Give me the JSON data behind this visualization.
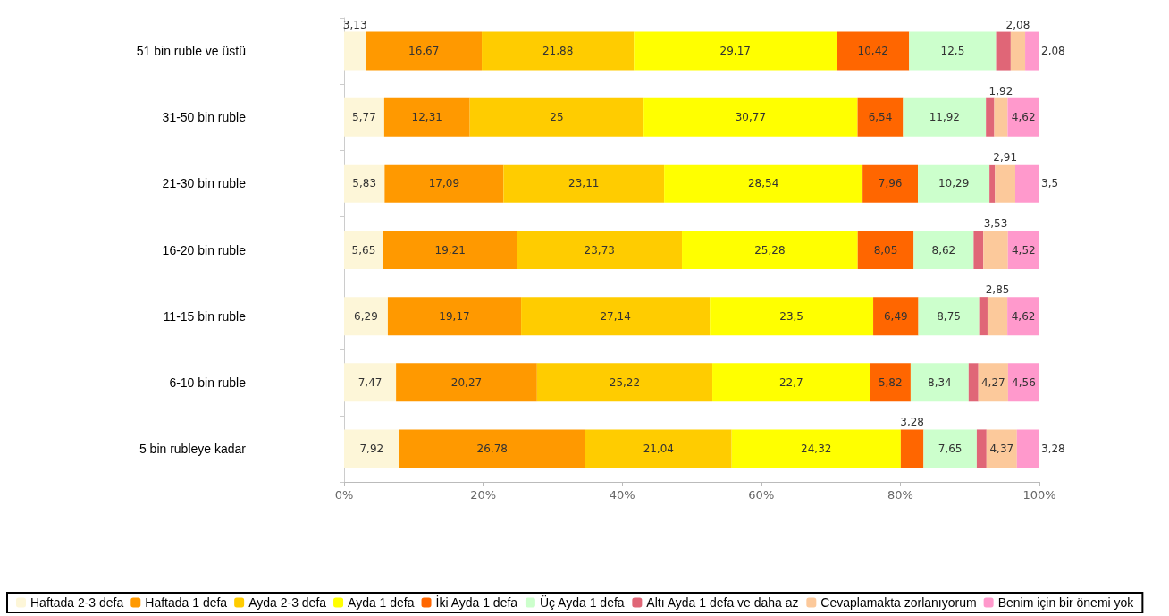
{
  "chart_data": {
    "type": "bar",
    "orientation": "horizontal",
    "stacked": true,
    "grid": false,
    "legend": "bottom",
    "categories": [
      "51 bin ruble ve üstü",
      "31-50 bin ruble",
      "21-30 bin ruble",
      "16-20 bin ruble",
      "11-15 bin ruble",
      "6-10 bin ruble",
      "5 bin rubleye kadar"
    ],
    "xlim": [
      0,
      100
    ],
    "xticks": [
      {
        "value": 0,
        "label": "0%"
      },
      {
        "value": 20,
        "label": "20%"
      },
      {
        "value": 40,
        "label": "40%"
      },
      {
        "value": 60,
        "label": "60%"
      },
      {
        "value": 80,
        "label": "80%"
      },
      {
        "value": 100,
        "label": "100%"
      }
    ],
    "series": [
      {
        "name": "Haftada 2-3 defa",
        "color": "#fdf6d8",
        "values": [
          3.13,
          5.77,
          5.83,
          5.65,
          6.29,
          7.47,
          7.92
        ],
        "value_labels": [
          "3,13",
          "5,77",
          "5,83",
          "5,65",
          "6,29",
          "7,47",
          "7,92"
        ]
      },
      {
        "name": "Haftada 1 defa",
        "color": "#ff9900",
        "values": [
          16.67,
          12.31,
          17.09,
          19.21,
          19.17,
          20.27,
          26.78
        ],
        "value_labels": [
          "16,67",
          "12,31",
          "17,09",
          "19,21",
          "19,17",
          "20,27",
          "26,78"
        ]
      },
      {
        "name": "Ayda 2-3 defa",
        "color": "#ffcc00",
        "values": [
          21.88,
          25,
          23.11,
          23.73,
          27.14,
          25.22,
          21.04
        ],
        "value_labels": [
          "21,88",
          "25",
          "23,11",
          "23,73",
          "27,14",
          "25,22",
          "21,04"
        ]
      },
      {
        "name": "Ayda 1 defa",
        "color": "#ffff00",
        "values": [
          29.17,
          30.77,
          28.54,
          25.28,
          23.5,
          22.7,
          24.32
        ],
        "value_labels": [
          "29,17",
          "30,77",
          "28,54",
          "25,28",
          "23,5",
          "22,7",
          "24,32"
        ]
      },
      {
        "name": "İki Ayda 1 defa",
        "color": "#ff6600",
        "values": [
          10.42,
          6.54,
          7.96,
          8.05,
          6.49,
          5.82,
          3.28
        ],
        "value_labels": [
          "10,42",
          "6,54",
          "7,96",
          "8,05",
          "6,49",
          "5,82",
          "3,28"
        ]
      },
      {
        "name": "Üç Ayda 1 defa",
        "color": "#ccffcc",
        "values": [
          12.5,
          11.92,
          10.29,
          8.62,
          8.75,
          8.34,
          7.65
        ],
        "value_labels": [
          "12,5",
          "11,92",
          "10,29",
          "8,62",
          "8,75",
          "8,34",
          "7,65"
        ]
      },
      {
        "name": "Altı Ayda 1 defa ve daha az",
        "color": "#e06677",
        "values": [
          2.1,
          1.2,
          0.8,
          1.4,
          1.2,
          1.4,
          1.4
        ],
        "value_labels": [
          null,
          null,
          null,
          null,
          null,
          null,
          null
        ]
      },
      {
        "name": "Cevaplamakta zorlanıyorum",
        "color": "#fcc99b",
        "values": [
          2.08,
          1.92,
          2.91,
          3.53,
          2.85,
          4.27,
          4.37
        ],
        "value_labels": [
          "2,08",
          "1,92",
          "2,91",
          "3,53",
          "2,85",
          "4,27",
          "4,37"
        ]
      },
      {
        "name": "Benim için bir önemi yok",
        "color": "#ff99cc",
        "values": [
          2.08,
          4.62,
          3.5,
          4.52,
          4.62,
          4.56,
          3.28
        ],
        "value_labels": [
          "2,08",
          "4,62",
          "3,5",
          "4,52",
          "4,62",
          "4,56",
          "3,28"
        ]
      }
    ]
  }
}
